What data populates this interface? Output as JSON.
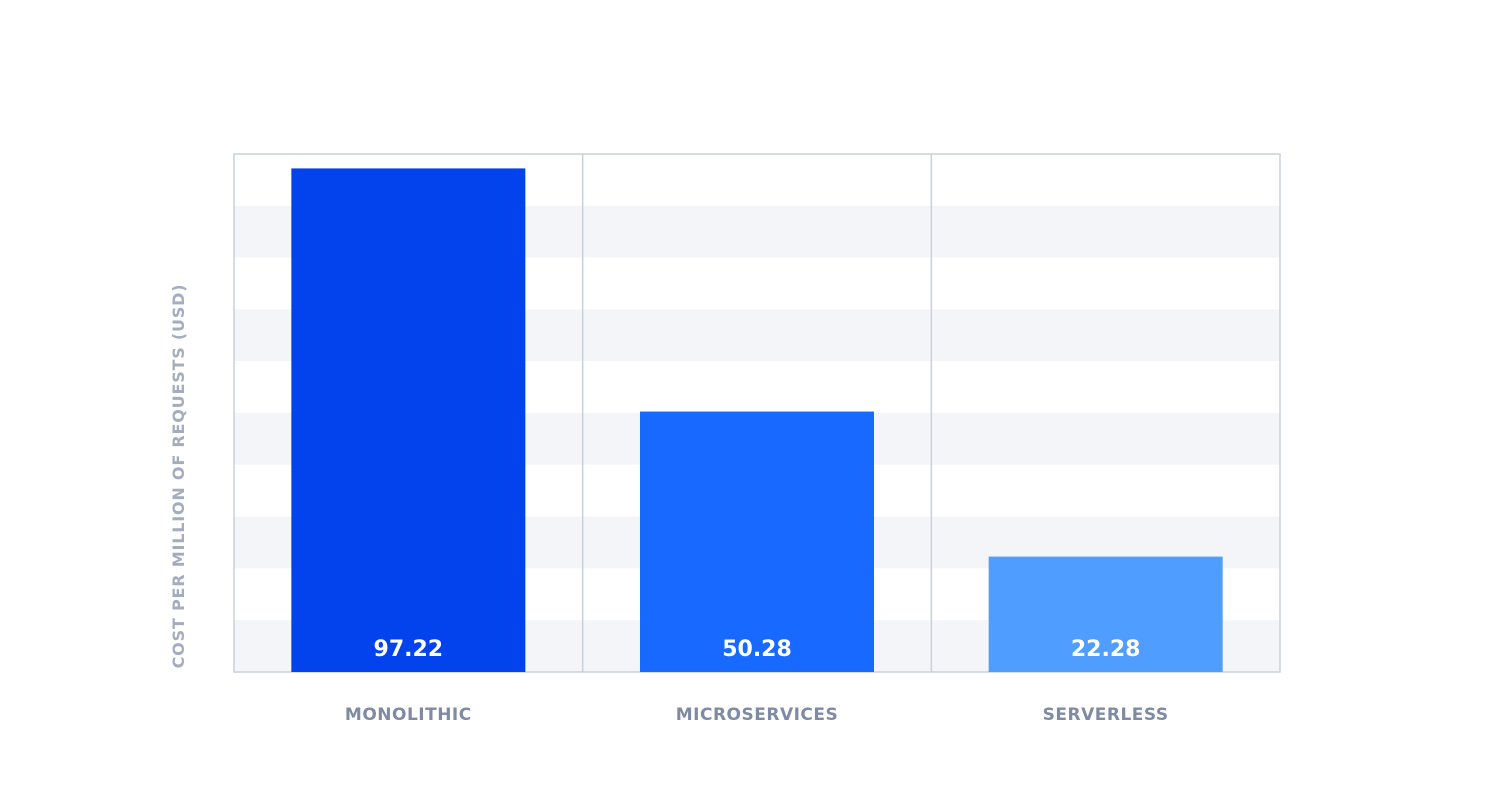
{
  "chart_data": {
    "type": "bar",
    "title": "",
    "xlabel": "",
    "ylabel": "COST PER MILLION OF REQUESTS (USD)",
    "categories": [
      "MONOLITHIC",
      "MICROSERVICES",
      "SERVERLESS"
    ],
    "values": [
      97.22,
      50.28,
      22.28
    ],
    "value_labels": [
      "97.22",
      "50.28",
      "22.28"
    ],
    "ylim": [
      0,
      100
    ],
    "grid": true,
    "legend": "none",
    "colors": [
      "#0243ee",
      "#1769ff",
      "#4f9dff"
    ]
  }
}
